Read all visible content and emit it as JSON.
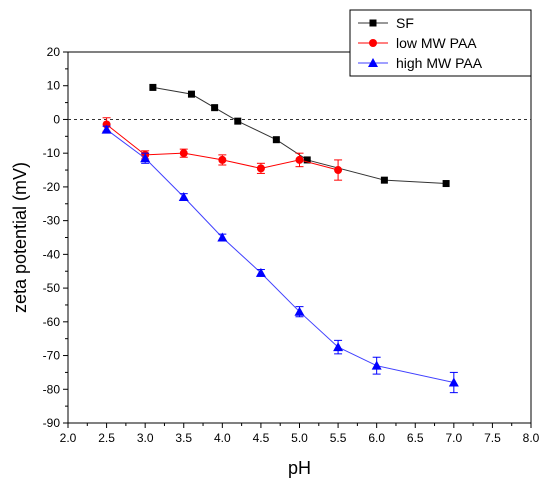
{
  "chart_data": {
    "type": "line",
    "xlabel": "pH",
    "ylabel": "zeta potential (mV)",
    "xlim": [
      2.0,
      8.0
    ],
    "ylim": [
      -90,
      20
    ],
    "xticks": [
      2.0,
      2.5,
      3.0,
      3.5,
      4.0,
      4.5,
      5.0,
      5.5,
      6.0,
      6.5,
      7.0,
      7.5,
      8.0
    ],
    "xtick_labels": [
      "2.0",
      "2.5",
      "3.0",
      "3.5",
      "4.0",
      "4.5",
      "5.0",
      "5.5",
      "6.0",
      "6.5",
      "7.0",
      "7.5",
      "8.0"
    ],
    "yticks": [
      20,
      10,
      0,
      -10,
      -20,
      -30,
      -40,
      -50,
      -60,
      -70,
      -80,
      -90
    ],
    "ytick_labels": [
      "20",
      "10",
      "0",
      "-10",
      "-20",
      "-30",
      "-40",
      "-50",
      "-60",
      "-70",
      "-80",
      "-90"
    ],
    "reference_line_y": 0,
    "grid": false,
    "legend_position": "top-right",
    "series": [
      {
        "name": "SF",
        "marker": "square",
        "color": "#000000",
        "line_color": "#333333",
        "x": [
          3.1,
          3.6,
          3.9,
          4.2,
          4.7,
          5.1,
          6.1,
          6.9
        ],
        "y": [
          9.5,
          7.5,
          3.5,
          -0.5,
          -6.0,
          -12.0,
          -18.0,
          -19.0
        ],
        "err": [
          0,
          0,
          0,
          0,
          0,
          0,
          0,
          0
        ]
      },
      {
        "name": "low MW PAA",
        "marker": "circle",
        "color": "#ff0000",
        "line_color": "#ff0000",
        "x": [
          2.5,
          3.0,
          3.5,
          4.0,
          4.5,
          5.0,
          5.5
        ],
        "y": [
          -1.5,
          -10.5,
          -10.0,
          -12.0,
          -14.5,
          -12.0,
          -15.0
        ],
        "err": [
          2.0,
          1.2,
          1.2,
          1.5,
          1.5,
          2.0,
          3.0
        ]
      },
      {
        "name": "high MW PAA",
        "marker": "triangle",
        "color": "#0000ff",
        "line_color": "#4040ff",
        "x": [
          2.5,
          3.0,
          3.5,
          4.0,
          4.5,
          5.0,
          5.5,
          6.0,
          7.0
        ],
        "y": [
          -3.0,
          -11.5,
          -23.0,
          -35.0,
          -45.5,
          -57.0,
          -67.5,
          -73.0,
          -78.0
        ],
        "err": [
          1.0,
          1.5,
          1.0,
          1.0,
          1.0,
          1.5,
          2.0,
          2.5,
          3.0
        ]
      }
    ]
  }
}
